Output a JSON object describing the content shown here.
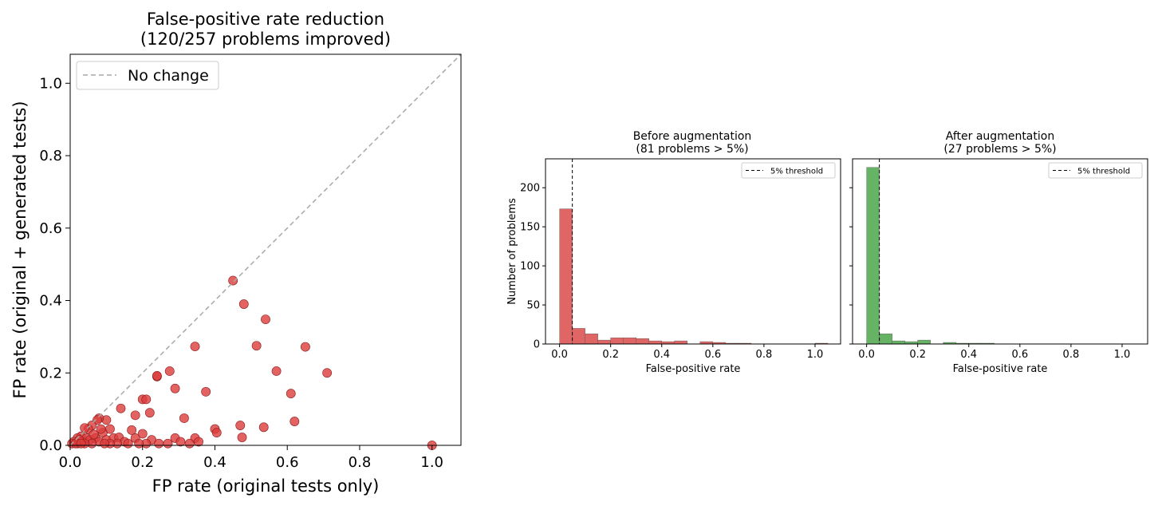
{
  "colors": {
    "scatter_fill": "#dc3c3c",
    "scatter_edge": "#8b1a1a",
    "diagonal": "#a8a8a8",
    "before_bar": "#e06666",
    "after_bar": "#66b366",
    "bar_edge": "#555555",
    "threshold": "#000000"
  },
  "chart_data": [
    {
      "type": "scatter",
      "title": "False-positive rate reduction",
      "subtitle": "(120/257 problems improved)",
      "xlabel": "FP rate (original tests only)",
      "ylabel": "FP rate (original + generated tests)",
      "xlim": [
        0,
        1.08
      ],
      "ylim": [
        0,
        1.08
      ],
      "xticks": [
        "0.0",
        "0.2",
        "0.4",
        "0.6",
        "0.8",
        "1.0"
      ],
      "yticks": [
        "0.0",
        "0.2",
        "0.4",
        "0.6",
        "0.8",
        "1.0"
      ],
      "grid": false,
      "legend": {
        "placement": "top-left",
        "entries": [
          "No change"
        ]
      },
      "reference_line": {
        "name": "No change",
        "style": "dashed",
        "x": [
          0,
          1.08
        ],
        "y": [
          0,
          1.08
        ]
      },
      "points": [
        [
          0.45,
          0.455
        ],
        [
          0.48,
          0.39
        ],
        [
          0.54,
          0.348
        ],
        [
          0.345,
          0.273
        ],
        [
          0.515,
          0.275
        ],
        [
          0.65,
          0.272
        ],
        [
          0.57,
          0.205
        ],
        [
          0.71,
          0.2
        ],
        [
          0.275,
          0.205
        ],
        [
          0.24,
          0.19
        ],
        [
          0.24,
          0.192
        ],
        [
          0.61,
          0.143
        ],
        [
          0.375,
          0.148
        ],
        [
          0.29,
          0.157
        ],
        [
          0.2,
          0.127
        ],
        [
          0.21,
          0.127
        ],
        [
          0.14,
          0.102
        ],
        [
          0.18,
          0.083
        ],
        [
          0.22,
          0.09
        ],
        [
          0.315,
          0.075
        ],
        [
          0.47,
          0.055
        ],
        [
          0.62,
          0.066
        ],
        [
          0.535,
          0.05
        ],
        [
          0.1,
          0.07
        ],
        [
          0.08,
          0.075
        ],
        [
          0.075,
          0.07
        ],
        [
          0.4,
          0.045
        ],
        [
          0.405,
          0.035
        ],
        [
          0.475,
          0.022
        ],
        [
          0.2,
          0.032
        ],
        [
          0.17,
          0.042
        ],
        [
          0.11,
          0.045
        ],
        [
          0.06,
          0.055
        ],
        [
          0.05,
          0.045
        ],
        [
          0.04,
          0.048
        ],
        [
          0.09,
          0.035
        ],
        [
          0.03,
          0.025
        ],
        [
          0.02,
          0.02
        ],
        [
          0.01,
          0.01
        ],
        [
          0.005,
          0.005
        ],
        [
          0.02,
          0.005
        ],
        [
          0.035,
          0.01
        ],
        [
          0.045,
          0.02
        ],
        [
          0.055,
          0.015
        ],
        [
          0.07,
          0.02
        ],
        [
          0.08,
          0.01
        ],
        [
          0.1,
          0.015
        ],
        [
          0.12,
          0.02
        ],
        [
          0.135,
          0.022
        ],
        [
          0.15,
          0.01
        ],
        [
          0.18,
          0.02
        ],
        [
          0.225,
          0.015
        ],
        [
          0.245,
          0.005
        ],
        [
          0.29,
          0.02
        ],
        [
          0.305,
          0.01
        ],
        [
          0.345,
          0.02
        ],
        [
          0.355,
          0.01
        ],
        [
          0.33,
          0.005
        ],
        [
          0.27,
          0.005
        ],
        [
          0.21,
          0.005
        ],
        [
          0.19,
          0.005
        ],
        [
          0.16,
          0.005
        ],
        [
          0.13,
          0.005
        ],
        [
          0.11,
          0.005
        ],
        [
          0.095,
          0.005
        ],
        [
          0.06,
          0.005
        ],
        [
          0.04,
          0.005
        ],
        [
          0.025,
          0.015
        ],
        [
          0.015,
          0.005
        ],
        [
          0.03,
          0.005
        ],
        [
          0.065,
          0.03
        ],
        [
          0.085,
          0.045
        ],
        [
          1.0,
          0.0
        ]
      ]
    },
    {
      "type": "bar",
      "title": "Before augmentation",
      "subtitle": "(81 problems > 5%)",
      "xlabel": "False-positive rate",
      "ylabel": "Number of problems",
      "xlim": [
        -0.055,
        1.1
      ],
      "ylim": [
        0,
        237
      ],
      "xticks": [
        "0.0",
        "0.2",
        "0.4",
        "0.6",
        "0.8",
        "1.0"
      ],
      "yticks": [
        "0",
        "50",
        "100",
        "150",
        "200"
      ],
      "grid": false,
      "legend": {
        "placement": "top-right",
        "entries": [
          "5% threshold"
        ]
      },
      "threshold": 0.05,
      "bin_width": 0.05,
      "bin_starts": [
        0.0,
        0.05,
        0.1,
        0.15,
        0.2,
        0.25,
        0.3,
        0.35,
        0.4,
        0.45,
        0.5,
        0.55,
        0.6,
        0.65,
        0.7,
        0.75,
        0.8,
        0.85,
        0.9,
        0.95,
        1.0
      ],
      "values": [
        173,
        20,
        13,
        5,
        8,
        8,
        7,
        4,
        3,
        4,
        0,
        3,
        2,
        1,
        1,
        0,
        0,
        0,
        0,
        0,
        1
      ]
    },
    {
      "type": "bar",
      "title": "After augmentation",
      "subtitle": "(27 problems > 5%)",
      "xlabel": "False-positive rate",
      "ylabel": "",
      "xlim": [
        -0.055,
        1.1
      ],
      "ylim": [
        0,
        237
      ],
      "xticks": [
        "0.0",
        "0.2",
        "0.4",
        "0.6",
        "0.8",
        "1.0"
      ],
      "yticks": [],
      "grid": false,
      "legend": {
        "placement": "top-right",
        "entries": [
          "5% threshold"
        ]
      },
      "threshold": 0.05,
      "bin_width": 0.05,
      "bin_starts": [
        0.0,
        0.05,
        0.1,
        0.15,
        0.2,
        0.25,
        0.3,
        0.35,
        0.4,
        0.45,
        0.5,
        0.55,
        0.6,
        0.65,
        0.7,
        0.75,
        0.8,
        0.85,
        0.9,
        0.95,
        1.0
      ],
      "values": [
        226,
        13,
        4,
        3,
        5,
        0,
        2,
        1,
        1,
        1,
        0,
        0,
        0,
        0,
        0,
        0,
        0,
        0,
        0,
        0,
        0
      ]
    }
  ]
}
